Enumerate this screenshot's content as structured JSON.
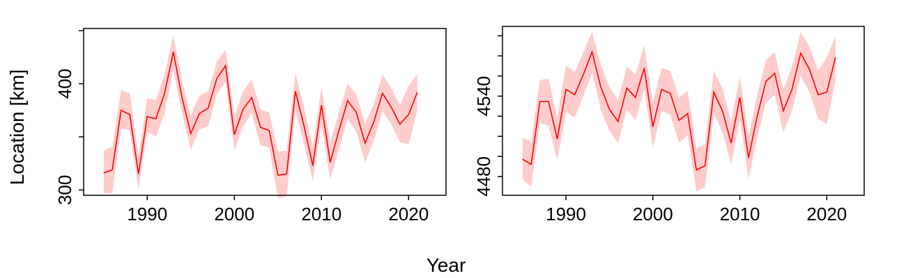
{
  "figure": {
    "ylabel": "Location [km]",
    "xlabel": "Year",
    "line_color": "#ff0000",
    "band_color": "#ffcccc"
  },
  "chart_data": [
    {
      "type": "line",
      "x": [
        1985,
        1986,
        1987,
        1988,
        1989,
        1990,
        1991,
        1992,
        1993,
        1994,
        1995,
        1996,
        1997,
        1998,
        1999,
        2000,
        2001,
        2002,
        2003,
        2004,
        2005,
        2006,
        2007,
        2008,
        2009,
        2010,
        2011,
        2012,
        2013,
        2014,
        2015,
        2016,
        2017,
        2018,
        2019,
        2020,
        2021
      ],
      "series": [
        {
          "values": [
            316,
            319,
            375,
            371,
            315,
            369,
            367,
            391,
            430,
            387,
            353,
            372,
            377,
            405,
            417,
            352,
            376,
            387,
            359,
            356,
            314,
            315,
            393,
            360,
            323,
            380,
            326,
            356,
            384,
            373,
            344,
            364,
            391,
            378,
            362,
            371,
            392
          ],
          "lower": [
            297,
            297,
            358,
            356,
            300,
            355,
            350,
            372,
            413,
            372,
            338,
            357,
            360,
            390,
            402,
            337,
            360,
            372,
            342,
            340,
            292,
            294,
            375,
            343,
            308,
            362,
            310,
            338,
            367,
            355,
            326,
            346,
            374,
            362,
            345,
            343,
            375
          ],
          "upper": [
            337,
            341,
            394,
            391,
            332,
            386,
            385,
            409,
            446,
            403,
            370,
            389,
            393,
            421,
            432,
            369,
            393,
            404,
            376,
            373,
            336,
            337,
            410,
            378,
            340,
            397,
            345,
            373,
            400,
            390,
            363,
            381,
            409,
            396,
            380,
            398,
            409
          ]
        }
      ],
      "xlim": [
        1982.7,
        2024.3
      ],
      "ylim": [
        295,
        452
      ],
      "xticks": [
        1990,
        2000,
        2010,
        2020
      ],
      "xtick_labels": [
        "1990",
        "2000",
        "2010",
        "2020"
      ],
      "yticks": [
        300,
        350,
        400,
        450
      ],
      "ytick_labels": [
        "300",
        "",
        "400",
        ""
      ],
      "grid": false
    },
    {
      "type": "line",
      "x": [
        1985,
        1986,
        1987,
        1988,
        1989,
        1990,
        1991,
        1992,
        1993,
        1994,
        1995,
        1996,
        1997,
        1998,
        1999,
        2000,
        2001,
        2002,
        2003,
        2004,
        2005,
        2006,
        2007,
        2008,
        2009,
        2010,
        2011,
        2012,
        2013,
        2014,
        2015,
        2016,
        2017,
        2018,
        2019,
        2020,
        2021
      ],
      "series": [
        {
          "values": [
            4493,
            4489,
            4536,
            4536,
            4508,
            4545,
            4541,
            4556,
            4573,
            4547,
            4530,
            4521,
            4546,
            4539,
            4561,
            4517,
            4545,
            4542,
            4522,
            4527,
            4485,
            4488,
            4543,
            4529,
            4505,
            4539,
            4494,
            4525,
            4551,
            4557,
            4529,
            4545,
            4572,
            4560,
            4541,
            4543,
            4569
          ],
          "lower": [
            4478,
            4472,
            4520,
            4518,
            4492,
            4528,
            4524,
            4540,
            4557,
            4530,
            4514,
            4505,
            4530,
            4522,
            4545,
            4502,
            4529,
            4526,
            4505,
            4511,
            4469,
            4472,
            4527,
            4513,
            4489,
            4522,
            4478,
            4509,
            4535,
            4541,
            4513,
            4529,
            4555,
            4543,
            4523,
            4519,
            4552
          ],
          "upper": [
            4509,
            4506,
            4552,
            4553,
            4524,
            4563,
            4558,
            4573,
            4588,
            4564,
            4547,
            4537,
            4562,
            4556,
            4578,
            4535,
            4561,
            4559,
            4539,
            4544,
            4501,
            4504,
            4559,
            4546,
            4521,
            4555,
            4510,
            4541,
            4567,
            4573,
            4545,
            4562,
            4588,
            4577,
            4559,
            4569,
            4585
          ]
        }
      ],
      "xlim": [
        1982.7,
        2024.3
      ],
      "ylim": [
        4466,
        4592
      ],
      "xticks": [
        1990,
        2000,
        2010,
        2020
      ],
      "xtick_labels": [
        "1990",
        "2000",
        "2010",
        "2020"
      ],
      "yticks": [
        4480,
        4495,
        4510,
        4525,
        4540,
        4555,
        4570,
        4585
      ],
      "ytick_labels": [
        "4480",
        "",
        "",
        "",
        "4540",
        "",
        "",
        ""
      ],
      "grid": false
    }
  ]
}
